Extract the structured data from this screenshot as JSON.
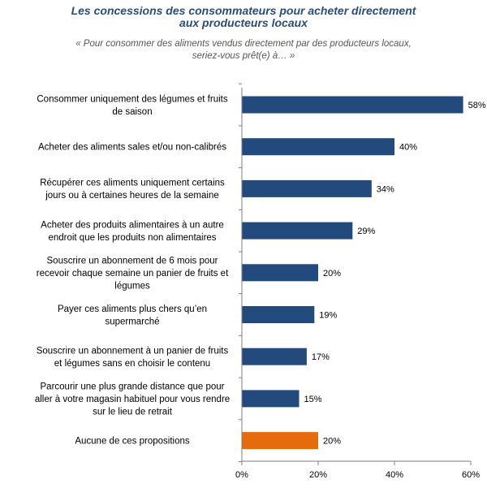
{
  "title_line1": "Les concessions des consommateurs pour acheter directement",
  "title_line2": "aux producteurs locaux",
  "subtitle_line1": "« Pour consommer des aliments vendus directement par des producteurs locaux,",
  "subtitle_line2": "seriez-vous prêt(e) à… »",
  "colors": {
    "bar": "#234a7c",
    "highlight": "#e46c0a",
    "axis": "#7f7f7f",
    "title": "#2a4d7a"
  },
  "chart_data": {
    "type": "bar",
    "orientation": "horizontal",
    "title": "Les concessions des consommateurs pour acheter directement aux producteurs locaux",
    "subtitle": "« Pour consommer des aliments vendus directement par des producteurs locaux, seriez-vous prêt(e) à… »",
    "categories": [
      [
        "Consommer uniquement des légumes et fruits",
        "de saison"
      ],
      [
        "Acheter des aliments sales et/ou non-calibrés"
      ],
      [
        "Récupérer ces aliments uniquement certains",
        "jours ou à certaines heures de la semaine"
      ],
      [
        "Acheter des produits alimentaires à un autre",
        "endroit que les produits non alimentaires"
      ],
      [
        "Souscrire un abonnement de 6 mois pour",
        "recevoir chaque semaine un panier de fruits et",
        "légumes"
      ],
      [
        "Payer ces aliments plus chers qu’en",
        "supermarché"
      ],
      [
        "Souscrire un abonnement à un panier de fruits",
        "et légumes sans en choisir le contenu"
      ],
      [
        "Parcourir une plus grande distance que pour",
        "aller à votre magasin habituel pour vous rendre",
        "sur le lieu de retrait"
      ],
      [
        "Aucune de ces propositions"
      ]
    ],
    "values": [
      58,
      40,
      34,
      29,
      20,
      19,
      17,
      15,
      20
    ],
    "value_labels": [
      "58%",
      "40%",
      "34%",
      "29%",
      "20%",
      "19%",
      "17%",
      "15%",
      "20%"
    ],
    "highlighted_index": 8,
    "xlim": [
      0,
      60
    ],
    "xticks": [
      0,
      20,
      40,
      60
    ],
    "xtick_labels": [
      "0%",
      "20%",
      "40%",
      "60%"
    ],
    "grid": false,
    "legend": "none"
  }
}
